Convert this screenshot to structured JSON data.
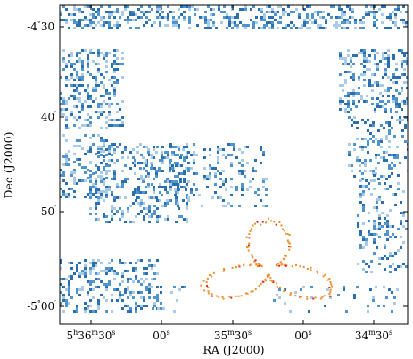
{
  "figure": {
    "x_axis_label": "RA (J2000)",
    "y_axis_label": "Dec (J2000)",
    "x_ticks": [
      {
        "h": "5",
        "m": "36",
        "s": "30"
      },
      {
        "h": "",
        "m": "",
        "s": "00"
      },
      {
        "h": "",
        "m": "35",
        "s": "30"
      },
      {
        "h": "",
        "m": "",
        "s": "00"
      },
      {
        "h": "",
        "m": "34",
        "s": "30"
      }
    ],
    "y_ticks": [
      {
        "deg": "-4",
        "min": "30"
      },
      {
        "deg": "",
        "min": "40"
      },
      {
        "deg": "",
        "min": "50"
      },
      {
        "deg": "-5",
        "min": "00"
      }
    ],
    "colors": {
      "map_dark": "#2a6fb0",
      "map_mid": "#4f94cd",
      "map_light": "#a9cbe8",
      "overlay_orange": "#f28c28",
      "overlay_red": "#d62728"
    }
  }
}
